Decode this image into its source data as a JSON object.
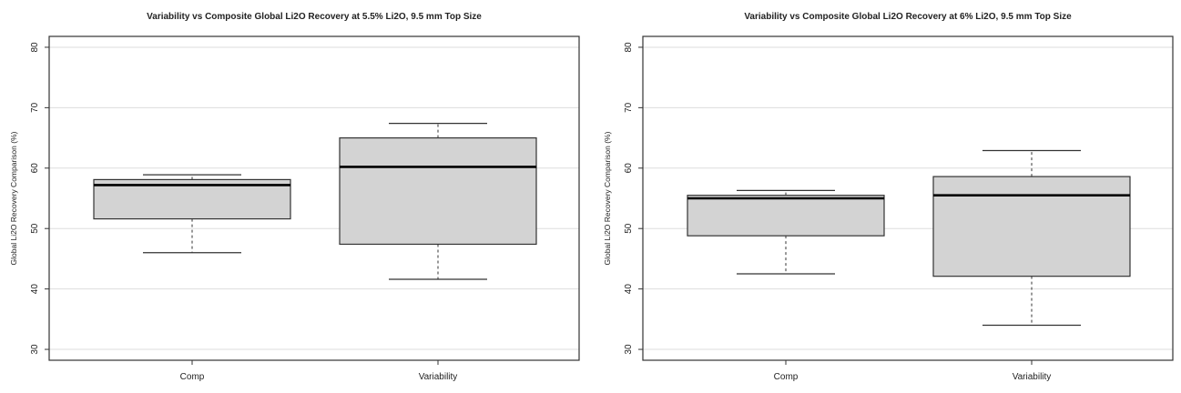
{
  "chart_data": [
    {
      "type": "boxplot",
      "title": "Variability vs Composite Global Li2O Recovery at 5.5% Li2O, 9.5 mm Top Size",
      "xlabel": "",
      "ylabel": "Global Li2O Recovery Comparison (%)",
      "ylim": [
        28.2,
        81.8
      ],
      "yticks": [
        30,
        40,
        50,
        60,
        70,
        80
      ],
      "grid": "horizontal",
      "categories": [
        "Comp",
        "Variability"
      ],
      "boxes": [
        {
          "category": "Comp",
          "whisker_low": 46.0,
          "q1": 51.6,
          "median": 57.2,
          "q3": 58.1,
          "whisker_high": 58.9
        },
        {
          "category": "Variability",
          "whisker_low": 41.6,
          "q1": 47.4,
          "median": 60.2,
          "q3": 65.0,
          "whisker_high": 67.4
        }
      ],
      "colors": {
        "box_fill": "#d3d3d3",
        "grid": "#dddddd"
      }
    },
    {
      "type": "boxplot",
      "title": "Variability vs Composite Global Li2O Recovery at 6% Li2O, 9.5 mm Top Size",
      "xlabel": "",
      "ylabel": "Global Li2O Recovery Comparison (%)",
      "ylim": [
        28.2,
        81.8
      ],
      "yticks": [
        30,
        40,
        50,
        60,
        70,
        80
      ],
      "grid": "horizontal",
      "categories": [
        "Comp",
        "Variability"
      ],
      "boxes": [
        {
          "category": "Comp",
          "whisker_low": 42.5,
          "q1": 48.8,
          "median": 55.0,
          "q3": 55.5,
          "whisker_high": 56.3
        },
        {
          "category": "Variability",
          "whisker_low": 34.0,
          "q1": 42.1,
          "median": 55.5,
          "q3": 58.6,
          "whisker_high": 62.9
        }
      ],
      "colors": {
        "box_fill": "#d3d3d3",
        "grid": "#dddddd"
      }
    }
  ]
}
